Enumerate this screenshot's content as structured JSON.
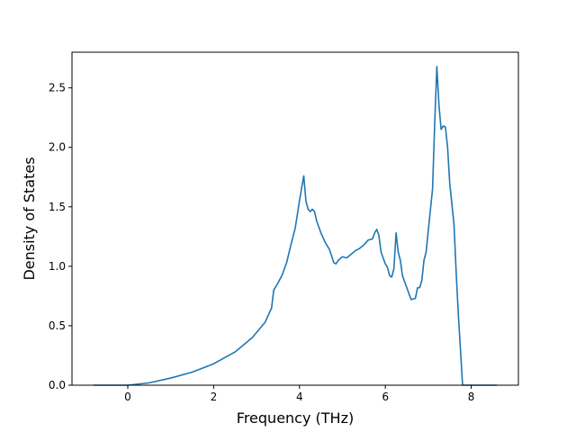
{
  "chart_data": {
    "type": "line",
    "title": "",
    "xlabel": "Frequency (THz)",
    "ylabel": "Density of States",
    "xlim": [
      -1.3,
      9.1
    ],
    "ylim": [
      0,
      2.8
    ],
    "xticks": [
      0,
      2,
      4,
      6,
      8
    ],
    "yticks": [
      0.0,
      0.5,
      1.0,
      1.5,
      2.0,
      2.5
    ],
    "xtick_labels": [
      "0",
      "2",
      "4",
      "6",
      "8"
    ],
    "ytick_labels": [
      "0.0",
      "0.5",
      "1.0",
      "1.5",
      "2.0",
      "2.5"
    ],
    "grid": false,
    "legend": "none",
    "series": [
      {
        "color": "#1f77b4",
        "x": [
          -0.8,
          0.0,
          0.5,
          1.0,
          1.5,
          2.0,
          2.5,
          2.9,
          3.2,
          3.35,
          3.4,
          3.5,
          3.6,
          3.7,
          3.8,
          3.9,
          4.0,
          4.05,
          4.1,
          4.15,
          4.2,
          4.25,
          4.3,
          4.35,
          4.4,
          4.5,
          4.6,
          4.7,
          4.8,
          4.85,
          4.9,
          5.0,
          5.1,
          5.2,
          5.3,
          5.4,
          5.5,
          5.6,
          5.7,
          5.75,
          5.8,
          5.85,
          5.9,
          6.0,
          6.05,
          6.1,
          6.15,
          6.2,
          6.25,
          6.3,
          6.35,
          6.4,
          6.5,
          6.6,
          6.7,
          6.75,
          6.8,
          6.85,
          6.9,
          6.95,
          7.0,
          7.1,
          7.15,
          7.2,
          7.25,
          7.3,
          7.35,
          7.4,
          7.45,
          7.5,
          7.6,
          7.65,
          7.7,
          7.75,
          7.8,
          7.85,
          8.0,
          8.6
        ],
        "y": [
          0.0,
          0.0,
          0.02,
          0.06,
          0.11,
          0.18,
          0.28,
          0.4,
          0.53,
          0.65,
          0.8,
          0.86,
          0.93,
          1.03,
          1.18,
          1.32,
          1.55,
          1.66,
          1.76,
          1.55,
          1.48,
          1.46,
          1.48,
          1.46,
          1.38,
          1.28,
          1.2,
          1.14,
          1.03,
          1.02,
          1.05,
          1.08,
          1.07,
          1.1,
          1.13,
          1.15,
          1.18,
          1.22,
          1.23,
          1.28,
          1.31,
          1.26,
          1.12,
          1.02,
          0.99,
          0.92,
          0.91,
          0.98,
          1.28,
          1.12,
          1.05,
          0.92,
          0.82,
          0.72,
          0.73,
          0.82,
          0.82,
          0.88,
          1.05,
          1.12,
          1.3,
          1.65,
          2.2,
          2.68,
          2.35,
          2.15,
          2.18,
          2.17,
          2.0,
          1.7,
          1.35,
          0.95,
          0.6,
          0.3,
          0.0,
          0.0,
          0.0,
          0.0
        ]
      }
    ]
  }
}
